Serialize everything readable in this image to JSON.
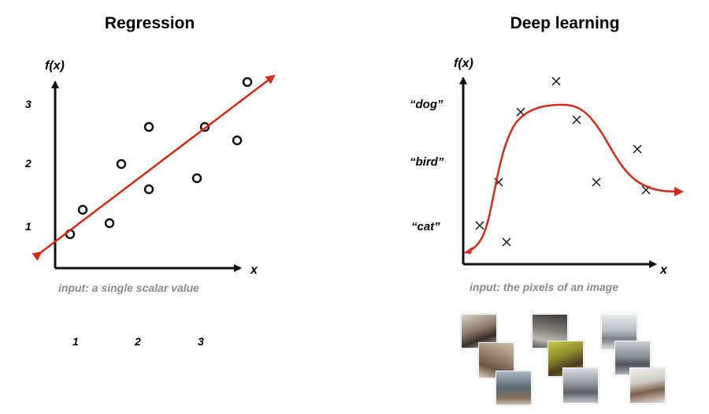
{
  "left": {
    "title": "Regression",
    "y_label": "f(x)",
    "x_label": "x",
    "y_ticks": [
      "1",
      "2",
      "3"
    ],
    "x_ticks": [
      "1",
      "2",
      "3"
    ],
    "caption": "input: a single scalar value"
  },
  "right": {
    "title": "Deep learning",
    "y_label": "f(x)",
    "x_label": "x",
    "y_ticks": [
      "“cat”",
      "“bird”",
      "“dog”"
    ],
    "caption": "input: the pixels of an image"
  },
  "colors": {
    "fit_line": "#d42a1c",
    "axis": "#111111",
    "caption": "#8a8a8a"
  },
  "image_thumbnails": [
    "dog-photo",
    "cat-photo",
    "cat-photo",
    "dog-photo",
    "dog-photo",
    "dog-photo",
    "bird-photo",
    "bird-photo",
    "bird-photo"
  ]
}
